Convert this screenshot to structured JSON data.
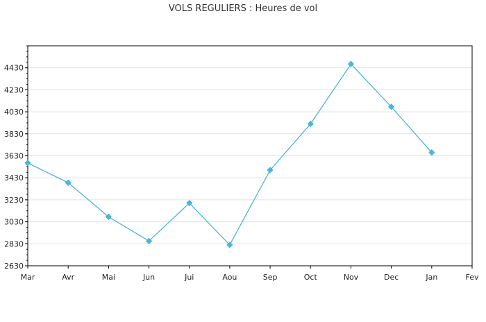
{
  "chart_data": {
    "type": "line",
    "title": "VOLS REGULIERS : Heures de vol",
    "xlabel": "",
    "ylabel": "",
    "categories": [
      "Mar",
      "Avr",
      "Mai",
      "Jun",
      "Jui",
      "Aou",
      "Sep",
      "Oct",
      "Nov",
      "Dec",
      "Jan",
      "Fev"
    ],
    "series": [
      {
        "values": [
          3565,
          3385,
          3075,
          2855,
          3200,
          2820,
          3500,
          3920,
          4465,
          4075,
          3660,
          null
        ]
      }
    ],
    "ylim": [
      2630,
      4630
    ],
    "y_ticks": [
      "2630",
      "2830",
      "3030",
      "3230",
      "3430",
      "3630",
      "3830",
      "4030",
      "4230",
      "4430"
    ],
    "grid": true,
    "line_color": "#3eaed6",
    "marker_color": "#4bb8db"
  }
}
